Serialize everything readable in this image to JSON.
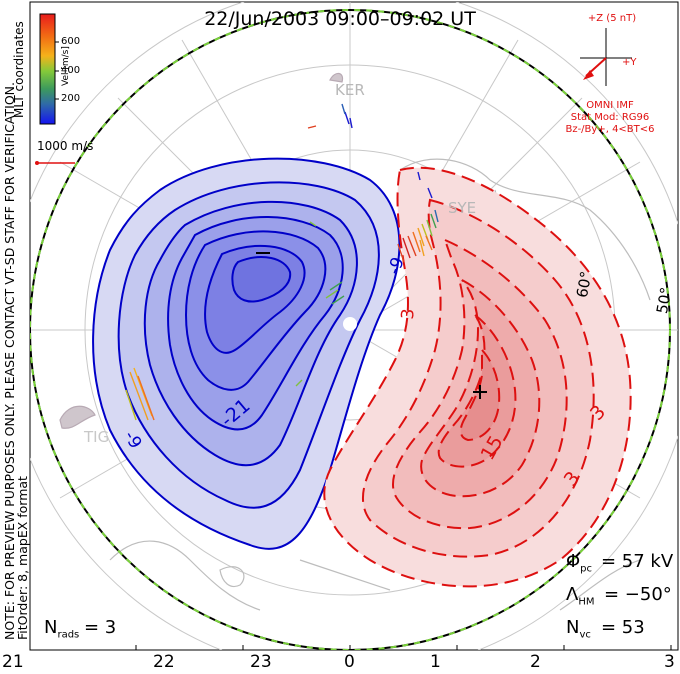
{
  "title": "22/Jun/2003 09:00–09:02 UT",
  "coords_label": "MLT coordinates",
  "colorbar": {
    "label": "Vel [m/s]",
    "ticks": [
      "600",
      "400",
      "200"
    ],
    "colors": [
      "#e81c1c",
      "#f05a14",
      "#f7a11b",
      "#c9c11e",
      "#77c83a",
      "#3da24a",
      "#2c8a7a",
      "#2a5fb6",
      "#1a1aee"
    ]
  },
  "scale_vector_label": "1000 m/s",
  "imf": {
    "z_label": "+Z (5 nT)",
    "y_label": "+Y",
    "source": "OMNI IMF",
    "model": "Stat Mod: RG96",
    "condition": "Bz-/By+, 4<BT<6"
  },
  "watermark": "NOTE: FOR PREVIEW PURPOSES ONLY. PLEASE CONTACT VT-SD STAFF FOR VERIFICATION.",
  "fit_order": "FitOrder: 8, mapEX format",
  "radars": [
    "KER",
    "SYE",
    "TIG"
  ],
  "latitude_labels": [
    "60°",
    "50°"
  ],
  "contour_labels": {
    "negative": [
      "-9",
      "-21",
      "-9"
    ],
    "positive": [
      "3",
      "15",
      "3"
    ],
    "near_null": "3"
  },
  "potential_markers": {
    "min": "–",
    "max": "+"
  },
  "stats": {
    "phi_pc_value": "= 57 kV",
    "lambda_hm_value": "= −50°",
    "n_vc_value": "= 53",
    "n_rads_value": "= 3"
  },
  "mlt_ticks": [
    "21",
    "22",
    "23",
    "0",
    "1",
    "2",
    "3"
  ],
  "colors": {
    "negative_contour": "#0000c8",
    "positive_contour": "#dd1010",
    "boundary_a": "#7ad23a",
    "boundary_b": "#000000"
  }
}
